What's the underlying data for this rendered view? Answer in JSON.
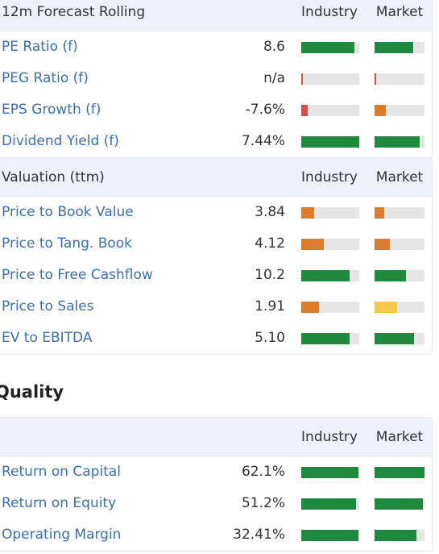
{
  "colors": {
    "green": "#1e8a3e",
    "orange": "#e07b2a",
    "red": "#d94a4a",
    "yellow": "#f2c94c",
    "track": "#e5e5e5"
  },
  "forecast": {
    "title": "12m Forecast Rolling",
    "industry_label": "Industry",
    "market_label": "Market",
    "rows": [
      {
        "label": "PE Ratio (f)",
        "value": "8.6",
        "industry": {
          "level": 0.92,
          "color": "green"
        },
        "market": {
          "level": 0.77,
          "color": "green"
        }
      },
      {
        "label": "PEG Ratio (f)",
        "value": "n/a",
        "industry": {
          "level": 0.03,
          "color": "red"
        },
        "market": {
          "level": 0.03,
          "color": "red"
        }
      },
      {
        "label": "EPS Growth (f)",
        "value": "-7.6%",
        "industry": {
          "level": 0.11,
          "color": "red"
        },
        "market": {
          "level": 0.22,
          "color": "orange"
        }
      },
      {
        "label": "Dividend Yield (f)",
        "value": "7.44%",
        "industry": {
          "level": 1.0,
          "color": "green"
        },
        "market": {
          "level": 0.9,
          "color": "green"
        }
      }
    ]
  },
  "valuation": {
    "title": "Valuation (ttm)",
    "industry_label": "Industry",
    "market_label": "Market",
    "rows": [
      {
        "label": "Price to Book Value",
        "value": "3.84",
        "industry": {
          "level": 0.22,
          "color": "orange"
        },
        "market": {
          "level": 0.2,
          "color": "orange"
        }
      },
      {
        "label": "Price to Tang. Book",
        "value": "4.12",
        "industry": {
          "level": 0.39,
          "color": "orange"
        },
        "market": {
          "level": 0.31,
          "color": "orange"
        }
      },
      {
        "label": "Price to Free Cashflow",
        "value": "10.2",
        "industry": {
          "level": 0.83,
          "color": "green"
        },
        "market": {
          "level": 0.63,
          "color": "green"
        }
      },
      {
        "label": "Price to Sales",
        "value": "1.91",
        "industry": {
          "level": 0.31,
          "color": "orange"
        },
        "market": {
          "level": 0.45,
          "color": "yellow"
        }
      },
      {
        "label": "EV to EBITDA",
        "value": "5.10",
        "industry": {
          "level": 0.84,
          "color": "green"
        },
        "market": {
          "level": 0.79,
          "color": "green"
        }
      }
    ]
  },
  "quality_heading": "Quality",
  "quality": {
    "title": "",
    "industry_label": "Industry",
    "market_label": "Market",
    "rows": [
      {
        "label": "Return on Capital",
        "value": "62.1%",
        "industry": {
          "level": 0.98,
          "color": "green"
        },
        "market": {
          "level": 1.0,
          "color": "green"
        }
      },
      {
        "label": "Return on Equity",
        "value": "51.2%",
        "industry": {
          "level": 0.95,
          "color": "green"
        },
        "market": {
          "level": 0.97,
          "color": "green"
        }
      },
      {
        "label": "Operating Margin",
        "value": "32.41%",
        "industry": {
          "level": 0.98,
          "color": "green"
        },
        "market": {
          "level": 0.84,
          "color": "green"
        }
      }
    ]
  }
}
